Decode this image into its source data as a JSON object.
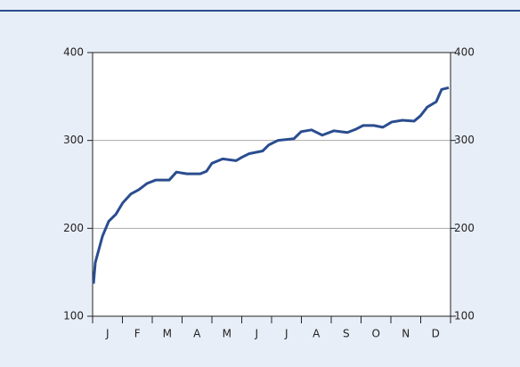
{
  "chart_data": {
    "type": "line",
    "x": [
      0.03,
      0.09,
      0.33,
      0.54,
      0.78,
      1.01,
      1.28,
      1.55,
      1.82,
      2.12,
      2.57,
      2.81,
      3.16,
      3.61,
      3.82,
      4.0,
      4.36,
      4.81,
      5.01,
      5.25,
      5.7,
      5.91,
      6.21,
      6.75,
      6.99,
      7.34,
      7.7,
      8.09,
      8.54,
      8.84,
      9.07,
      9.43,
      9.73,
      10.03,
      10.39,
      10.78,
      10.99,
      11.22,
      11.52,
      11.7,
      11.94
    ],
    "series": [
      {
        "color": "#2a4d8f",
        "values": [
          137,
          161,
          191,
          208,
          216,
          229,
          239,
          244,
          251,
          255,
          255,
          264,
          262,
          262,
          265,
          274,
          279,
          277,
          281,
          285,
          288,
          295,
          300,
          302,
          310,
          312,
          306,
          311,
          309,
          313,
          317,
          317,
          315,
          321,
          323,
          322,
          328,
          338,
          344,
          358,
          360
        ]
      }
    ],
    "xlim": [
      0,
      12
    ],
    "xticks": [
      {
        "value": 0.5,
        "label": "J"
      },
      {
        "value": 1.5,
        "label": "F"
      },
      {
        "value": 2.5,
        "label": "M"
      },
      {
        "value": 3.5,
        "label": "A"
      },
      {
        "value": 4.5,
        "label": "M"
      },
      {
        "value": 5.5,
        "label": "J"
      },
      {
        "value": 6.5,
        "label": "J"
      },
      {
        "value": 7.5,
        "label": "A"
      },
      {
        "value": 8.5,
        "label": "S"
      },
      {
        "value": 9.5,
        "label": "O"
      },
      {
        "value": 10.5,
        "label": "N"
      },
      {
        "value": 11.5,
        "label": "D"
      }
    ],
    "ylim": [
      100,
      400
    ],
    "yticks": [
      100,
      200,
      300,
      400
    ],
    "y2lim": [
      100,
      400
    ],
    "y2ticks": [
      100,
      200,
      300,
      400
    ],
    "grid": true
  }
}
